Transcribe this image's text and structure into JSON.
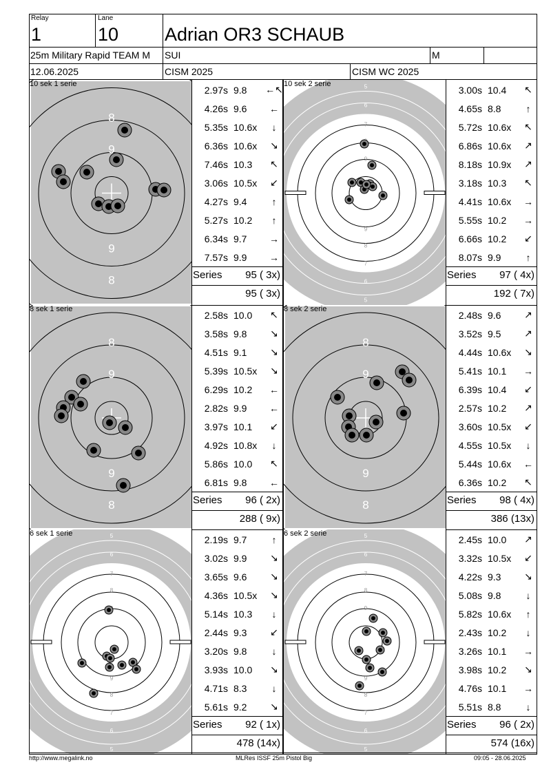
{
  "header": {
    "relay_label": "Relay",
    "relay": "1",
    "lane_label": "Lane",
    "lane": "10",
    "name": "Adrian OR3 SCHAUB",
    "event": "25m Military Rapid TEAM M",
    "nation": "SUI",
    "gender": "M",
    "date": "12.06.2025",
    "competition": "CISM 2025",
    "match": "CISM WC 2025"
  },
  "blocks": [
    {
      "left": {
        "title": "10 sek 1 serie",
        "rings": "bigcenter",
        "shots": [
          {
            "t": "2.97s",
            "s": "9.8",
            "d": "←↖"
          },
          {
            "t": "4.26s",
            "s": "9.6",
            "d": "←"
          },
          {
            "t": "5.35s",
            "s": "10.6x",
            "d": "↓"
          },
          {
            "t": "6.36s",
            "s": "10.6x",
            "d": "↘"
          },
          {
            "t": "7.46s",
            "s": "10.3",
            "d": "↖"
          },
          {
            "t": "3.06s",
            "s": "10.5x",
            "d": "↙"
          },
          {
            "t": "4.27s",
            "s": "9.4",
            "d": "↑"
          },
          {
            "t": "5.27s",
            "s": "10.2",
            "d": "↑"
          },
          {
            "t": "6.34s",
            "s": "9.7",
            "d": "→"
          },
          {
            "t": "7.57s",
            "s": "9.9",
            "d": "→"
          }
        ],
        "series_label": "Series",
        "series": "95 ( 3x)",
        "total": "95 ( 3x)"
      },
      "right": {
        "title": "10 sek 2 serie",
        "rings": "full",
        "shots": [
          {
            "t": "3.00s",
            "s": "10.4",
            "d": "↖"
          },
          {
            "t": "4.65s",
            "s": "8.8",
            "d": "↑"
          },
          {
            "t": "5.72s",
            "s": "10.6x",
            "d": "↖"
          },
          {
            "t": "6.86s",
            "s": "10.6x",
            "d": "↗"
          },
          {
            "t": "8.18s",
            "s": "10.9x",
            "d": "↗"
          },
          {
            "t": "3.18s",
            "s": "10.3",
            "d": "↖"
          },
          {
            "t": "4.41s",
            "s": "10.6x",
            "d": "→"
          },
          {
            "t": "5.55s",
            "s": "10.2",
            "d": "→"
          },
          {
            "t": "6.66s",
            "s": "10.2",
            "d": "↙"
          },
          {
            "t": "8.07s",
            "s": "9.9",
            "d": "↑"
          }
        ],
        "series_label": "Series",
        "series": "97 ( 4x)",
        "total": "192 ( 7x)"
      }
    },
    {
      "left": {
        "title": "8 sek 1 serie",
        "rings": "bigcenter",
        "shots": [
          {
            "t": "2.58s",
            "s": "10.0",
            "d": "↖"
          },
          {
            "t": "3.58s",
            "s": "9.8",
            "d": "↘"
          },
          {
            "t": "4.51s",
            "s": "9.1",
            "d": "↘"
          },
          {
            "t": "5.39s",
            "s": "10.5x",
            "d": "↘"
          },
          {
            "t": "6.29s",
            "s": "10.2",
            "d": "←"
          },
          {
            "t": "2.82s",
            "s": "9.9",
            "d": "←"
          },
          {
            "t": "3.97s",
            "s": "10.1",
            "d": "↙"
          },
          {
            "t": "4.92s",
            "s": "10.8x",
            "d": "↓"
          },
          {
            "t": "5.86s",
            "s": "10.0",
            "d": "↖"
          },
          {
            "t": "6.81s",
            "s": "9.8",
            "d": "←"
          }
        ],
        "series_label": "Series",
        "series": "96 ( 2x)",
        "total": "288 ( 9x)"
      },
      "right": {
        "title": "8 sek 2 serie",
        "rings": "bigcenter",
        "shots": [
          {
            "t": "2.48s",
            "s": "9.6",
            "d": "↗"
          },
          {
            "t": "3.52s",
            "s": "9.5",
            "d": "↗"
          },
          {
            "t": "4.44s",
            "s": "10.6x",
            "d": "↘"
          },
          {
            "t": "5.41s",
            "s": "10.1",
            "d": "→"
          },
          {
            "t": "6.39s",
            "s": "10.4",
            "d": "↙"
          },
          {
            "t": "2.57s",
            "s": "10.2",
            "d": "↗"
          },
          {
            "t": "3.60s",
            "s": "10.5x",
            "d": "↙"
          },
          {
            "t": "4.55s",
            "s": "10.5x",
            "d": "↓"
          },
          {
            "t": "5.44s",
            "s": "10.6x",
            "d": "←"
          },
          {
            "t": "6.36s",
            "s": "10.2",
            "d": "↖"
          }
        ],
        "series_label": "Series",
        "series": "98 ( 4x)",
        "total": "386 (13x)"
      }
    },
    {
      "left": {
        "title": "6 sek 1 serie",
        "rings": "full",
        "shots": [
          {
            "t": "2.19s",
            "s": "9.7",
            "d": "↑"
          },
          {
            "t": "3.02s",
            "s": "9.9",
            "d": "↘"
          },
          {
            "t": "3.65s",
            "s": "9.6",
            "d": "↘"
          },
          {
            "t": "4.36s",
            "s": "10.5x",
            "d": "↘"
          },
          {
            "t": "5.14s",
            "s": "10.3",
            "d": "↓"
          },
          {
            "t": "2.44s",
            "s": "9.3",
            "d": "↙"
          },
          {
            "t": "3.20s",
            "s": "9.8",
            "d": "↓"
          },
          {
            "t": "3.93s",
            "s": "10.0",
            "d": "↘"
          },
          {
            "t": "4.71s",
            "s": "8.3",
            "d": "↓"
          },
          {
            "t": "5.61s",
            "s": "9.2",
            "d": "↘"
          }
        ],
        "series_label": "Series",
        "series": "92 ( 1x)",
        "total": "478 (14x)"
      },
      "right": {
        "title": "6 sek 2 serie",
        "rings": "full",
        "shots": [
          {
            "t": "2.45s",
            "s": "10.0",
            "d": "↗"
          },
          {
            "t": "3.32s",
            "s": "10.5x",
            "d": "↙"
          },
          {
            "t": "4.22s",
            "s": "9.3",
            "d": "↘"
          },
          {
            "t": "5.08s",
            "s": "9.8",
            "d": "↓"
          },
          {
            "t": "5.82s",
            "s": "10.6x",
            "d": "↑"
          },
          {
            "t": "2.43s",
            "s": "10.2",
            "d": "↓"
          },
          {
            "t": "3.26s",
            "s": "10.1",
            "d": "→"
          },
          {
            "t": "3.98s",
            "s": "10.2",
            "d": "↘"
          },
          {
            "t": "4.76s",
            "s": "10.1",
            "d": "→"
          },
          {
            "t": "5.51s",
            "s": "8.8",
            "d": "↓"
          }
        ],
        "series_label": "Series",
        "series": "96 ( 2x)",
        "total": "574 (16x)"
      }
    }
  ],
  "ring_labels_big": {
    "nine": "9",
    "eight": "8"
  },
  "ring_labels_full": [
    "5",
    "6",
    "7",
    "8",
    "9"
  ],
  "footer": {
    "url": "http://www.megalink.no",
    "program": "MLRes ISSF 25m Pistol Big",
    "timestamp": "09:05 - 28.06.2025"
  }
}
